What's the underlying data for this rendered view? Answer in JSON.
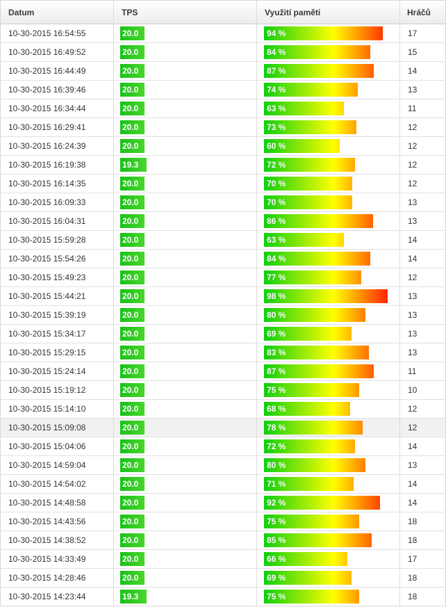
{
  "table": {
    "headers": {
      "datum": "Datum",
      "tps": "TPS",
      "memory": "Využití paměti",
      "players": "Hráčů"
    },
    "rows": [
      {
        "date": "10-30-2015 16:54:55",
        "tps": "20.0",
        "tps_value": 20.0,
        "mem_label": "94 %",
        "mem": 94,
        "players": "17"
      },
      {
        "date": "10-30-2015 16:49:52",
        "tps": "20.0",
        "tps_value": 20.0,
        "mem_label": "84 %",
        "mem": 84,
        "players": "15"
      },
      {
        "date": "10-30-2015 16:44:49",
        "tps": "20.0",
        "tps_value": 20.0,
        "mem_label": "87 %",
        "mem": 87,
        "players": "14"
      },
      {
        "date": "10-30-2015 16:39:46",
        "tps": "20.0",
        "tps_value": 20.0,
        "mem_label": "74 %",
        "mem": 74,
        "players": "13"
      },
      {
        "date": "10-30-2015 16:34:44",
        "tps": "20.0",
        "tps_value": 20.0,
        "mem_label": "63 %",
        "mem": 63,
        "players": "11"
      },
      {
        "date": "10-30-2015 16:29:41",
        "tps": "20.0",
        "tps_value": 20.0,
        "mem_label": "73 %",
        "mem": 73,
        "players": "12"
      },
      {
        "date": "10-30-2015 16:24:39",
        "tps": "20.0",
        "tps_value": 20.0,
        "mem_label": "60 %",
        "mem": 60,
        "players": "12"
      },
      {
        "date": "10-30-2015 16:19:38",
        "tps": "19.3",
        "tps_value": 19.3,
        "mem_label": "72 %",
        "mem": 72,
        "players": "12"
      },
      {
        "date": "10-30-2015 16:14:35",
        "tps": "20.0",
        "tps_value": 20.0,
        "mem_label": "70 %",
        "mem": 70,
        "players": "12"
      },
      {
        "date": "10-30-2015 16:09:33",
        "tps": "20.0",
        "tps_value": 20.0,
        "mem_label": "70 %",
        "mem": 70,
        "players": "13"
      },
      {
        "date": "10-30-2015 16:04:31",
        "tps": "20.0",
        "tps_value": 20.0,
        "mem_label": "86 %",
        "mem": 86,
        "players": "13"
      },
      {
        "date": "10-30-2015 15:59:28",
        "tps": "20.0",
        "tps_value": 20.0,
        "mem_label": "63 %",
        "mem": 63,
        "players": "14"
      },
      {
        "date": "10-30-2015 15:54:26",
        "tps": "20.0",
        "tps_value": 20.0,
        "mem_label": "84 %",
        "mem": 84,
        "players": "14"
      },
      {
        "date": "10-30-2015 15:49:23",
        "tps": "20.0",
        "tps_value": 20.0,
        "mem_label": "77 %",
        "mem": 77,
        "players": "12"
      },
      {
        "date": "10-30-2015 15:44:21",
        "tps": "20.0",
        "tps_value": 20.0,
        "mem_label": "98 %",
        "mem": 98,
        "players": "13"
      },
      {
        "date": "10-30-2015 15:39:19",
        "tps": "20.0",
        "tps_value": 20.0,
        "mem_label": "80 %",
        "mem": 80,
        "players": "13"
      },
      {
        "date": "10-30-2015 15:34:17",
        "tps": "20.0",
        "tps_value": 20.0,
        "mem_label": "69 %",
        "mem": 69,
        "players": "13"
      },
      {
        "date": "10-30-2015 15:29:15",
        "tps": "20.0",
        "tps_value": 20.0,
        "mem_label": "83 %",
        "mem": 83,
        "players": "13"
      },
      {
        "date": "10-30-2015 15:24:14",
        "tps": "20.0",
        "tps_value": 20.0,
        "mem_label": "87 %",
        "mem": 87,
        "players": "11"
      },
      {
        "date": "10-30-2015 15:19:12",
        "tps": "20.0",
        "tps_value": 20.0,
        "mem_label": "75 %",
        "mem": 75,
        "players": "10"
      },
      {
        "date": "10-30-2015 15:14:10",
        "tps": "20.0",
        "tps_value": 20.0,
        "mem_label": "68 %",
        "mem": 68,
        "players": "12"
      },
      {
        "date": "10-30-2015 15:09:08",
        "tps": "20.0",
        "tps_value": 20.0,
        "mem_label": "78 %",
        "mem": 78,
        "players": "12",
        "highlighted": true
      },
      {
        "date": "10-30-2015 15:04:06",
        "tps": "20.0",
        "tps_value": 20.0,
        "mem_label": "72 %",
        "mem": 72,
        "players": "14"
      },
      {
        "date": "10-30-2015 14:59:04",
        "tps": "20.0",
        "tps_value": 20.0,
        "mem_label": "80 %",
        "mem": 80,
        "players": "13"
      },
      {
        "date": "10-30-2015 14:54:02",
        "tps": "20.0",
        "tps_value": 20.0,
        "mem_label": "71 %",
        "mem": 71,
        "players": "14"
      },
      {
        "date": "10-30-2015 14:48:58",
        "tps": "20.0",
        "tps_value": 20.0,
        "mem_label": "92 %",
        "mem": 92,
        "players": "14"
      },
      {
        "date": "10-30-2015 14:43:56",
        "tps": "20.0",
        "tps_value": 20.0,
        "mem_label": "75 %",
        "mem": 75,
        "players": "18"
      },
      {
        "date": "10-30-2015 14:38:52",
        "tps": "20.0",
        "tps_value": 20.0,
        "mem_label": "85 %",
        "mem": 85,
        "players": "18"
      },
      {
        "date": "10-30-2015 14:33:49",
        "tps": "20.0",
        "tps_value": 20.0,
        "mem_label": "66 %",
        "mem": 66,
        "players": "17"
      },
      {
        "date": "10-30-2015 14:28:46",
        "tps": "20.0",
        "tps_value": 20.0,
        "mem_label": "69 %",
        "mem": 69,
        "players": "18"
      },
      {
        "date": "10-30-2015 14:23:44",
        "tps": "19.3",
        "tps_value": 19.3,
        "mem_label": "75 %",
        "mem": 75,
        "players": "18"
      }
    ]
  },
  "colors": {
    "tps_green": "#19c019",
    "mem_gradient": [
      "#0fcf0f",
      "#ffff00",
      "#ff1a00"
    ]
  }
}
